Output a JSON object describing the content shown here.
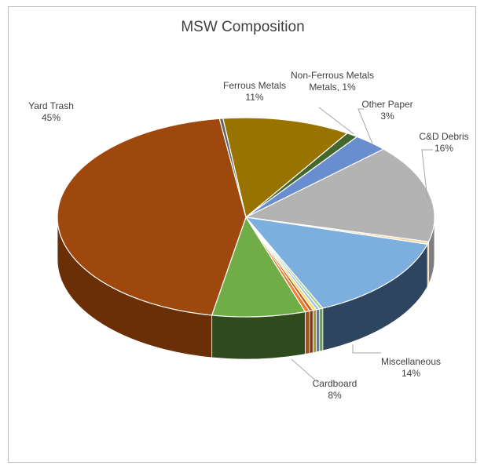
{
  "chart_data": {
    "type": "pie",
    "title": "MSW Composition",
    "start_category": "Yard Trash",
    "slices": [
      {
        "label": "Ferrous Metals",
        "value": 11,
        "pct_label": "11%",
        "color": "#997300",
        "side": "#6b5100"
      },
      {
        "label": "Non-Ferrous Metals",
        "value": 1,
        "pct_label": "1%",
        "color": "#43682b",
        "side": "#2e481e"
      },
      {
        "label": "Other Paper",
        "value": 3,
        "pct_label": "3%",
        "color": "#698ed0",
        "side": "#47649a"
      },
      {
        "label": "C&D Debris",
        "value": 16,
        "pct_label": "16%",
        "color": "#b3b3b3",
        "side": "#7f7f7f"
      },
      {
        "label": "",
        "value": 0.4,
        "pct_label": "",
        "color": "#f5d58f",
        "side": "#c9ab66"
      },
      {
        "label": "Miscellaneous",
        "value": 14,
        "pct_label": "14%",
        "color": "#7cafdd",
        "side": "#2e4560"
      },
      {
        "label": "",
        "value": 0.3,
        "pct_label": "",
        "color": "#a9d18e",
        "side": "#6f9a52"
      },
      {
        "label": "",
        "value": 0.3,
        "pct_label": "",
        "color": "#9dc3e6",
        "side": "#5b7ea3"
      },
      {
        "label": "",
        "value": 0.3,
        "pct_label": "",
        "color": "#ffd966",
        "side": "#b59628"
      },
      {
        "label": "",
        "value": 0.3,
        "pct_label": "",
        "color": "#c55a11",
        "side": "#7a3709"
      },
      {
        "label": "",
        "value": 0.4,
        "pct_label": "",
        "color": "#ed7d31",
        "side": "#a5531b"
      },
      {
        "label": "Cardboard",
        "value": 8,
        "pct_label": "8%",
        "color": "#70ad47",
        "side": "#2f4a1d"
      },
      {
        "label": "Yard Trash",
        "value": 45,
        "pct_label": "45%",
        "color": "#9e480e",
        "side": "#6b2f08"
      },
      {
        "label": "",
        "value": 0.3,
        "pct_label": "",
        "color": "#636363",
        "side": "#404040"
      }
    ],
    "label_layout": {
      "Ferrous Metals": "above",
      "Non-Ferrous Metals": "above",
      "Other Paper": "above-right",
      "C&D Debris": "right",
      "Miscellaneous": "below-right",
      "Cardboard": "below",
      "Yard Trash": "above-left"
    },
    "legend": "none"
  }
}
